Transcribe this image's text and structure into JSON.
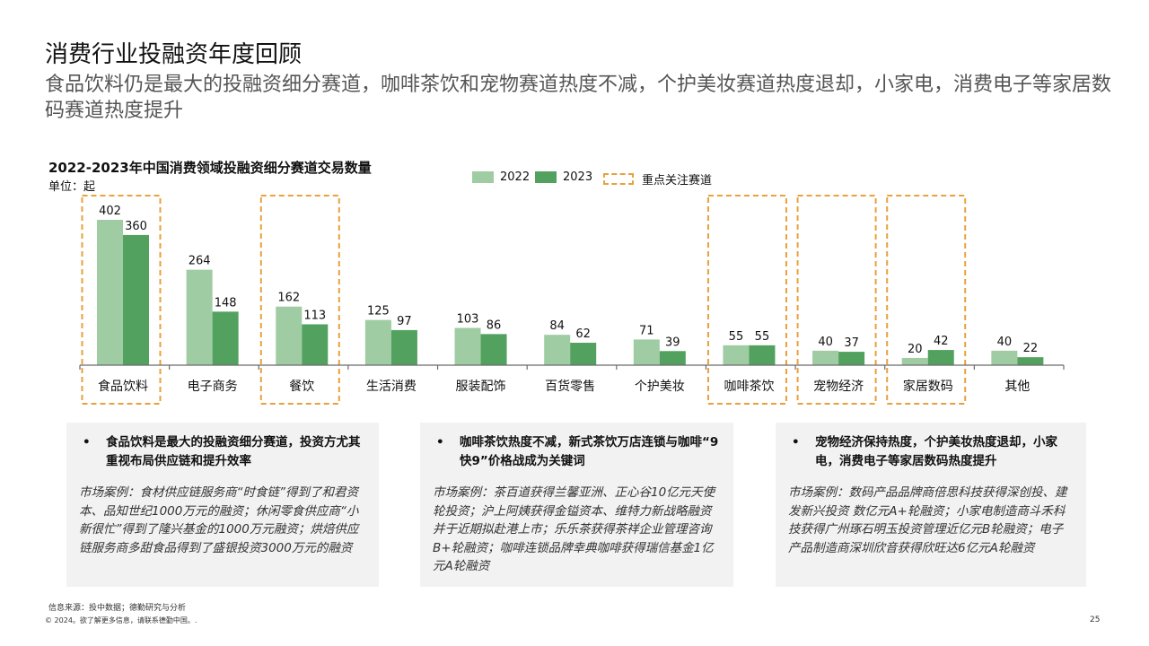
{
  "header": {
    "title": "消费行业投融资年度回顾",
    "subtitle": "食品饮料仍是最大的投融资细分赛道，咖啡茶饮和宠物赛道热度不减，个护美妆赛道热度退却，小家电，消费电子等家居数码赛道热度提升"
  },
  "chart_data": {
    "type": "bar",
    "title": "2022-2023年中国消费领域投融资细分赛道交易数量",
    "unit": "单位：起",
    "categories": [
      "食品饮料",
      "电子商务",
      "餐饮",
      "生活消费",
      "服装配饰",
      "百货零售",
      "个护美妆",
      "咖啡茶饮",
      "宠物经济",
      "家居数码",
      "其他"
    ],
    "series": [
      {
        "name": "2022",
        "values": [
          402,
          264,
          162,
          125,
          103,
          84,
          71,
          55,
          40,
          20,
          40
        ],
        "color": "#9fcca2"
      },
      {
        "name": "2023",
        "values": [
          360,
          148,
          113,
          97,
          86,
          62,
          39,
          55,
          37,
          42,
          22
        ],
        "color": "#52a15e"
      }
    ],
    "highlight_label": "重点关注赛道",
    "highlight_color": "#e8a13c",
    "highlighted_categories": [
      "食品饮料",
      "餐饮",
      "咖啡茶饮",
      "宠物经济",
      "家居数码"
    ],
    "ylim": [
      0,
      402
    ],
    "grid": false,
    "legend_position": "top"
  },
  "boxes": [
    {
      "bullet": "•",
      "heading": "食品饮料是最大的投融资细分赛道，投资方尤其重视布局供应链和提升效率",
      "case": "市场案例：食材供应链服务商“时食链”得到了和君资本、品知世纪1000万元的融资；休闲零食供应商“小新很忙”得到了隆兴基金的1000万元融资；烘焙供应链服务商多甜食品得到了盛银投资3000万元的融资"
    },
    {
      "bullet": "•",
      "heading": "咖啡茶饮热度不减，新式茶饮万店连锁与咖啡“9快9”价格战成为关键词",
      "case": "市场案例：茶百道获得兰馨亚洲、正心谷10亿元天使轮投资；沪上阿姨获得金镒资本、维特力新战略融资并于近期拟赴港上市；乐乐茶获得茶祥企业管理咨询B+轮融资；咖啡连锁品牌幸典咖啡获得瑞信基金1亿元A轮融资"
    },
    {
      "bullet": "•",
      "heading": "宠物经济保持热度，个护美妆热度退却，小家电，消费电子等家居数码热度提升",
      "case": "市场案例：数码产品品牌商倍思科技获得深创投、建发新兴投资 数亿元A+轮融资；小家电制造商斗禾科技获得广州琢石明玉投资管理近亿元B轮融资；电子产品制造商深圳欣音获得欣旺达6亿元A轮融资"
    }
  ],
  "footer": {
    "source": "信息来源：投中数据；德勤研究与分析",
    "copyright": "© 2024。欲了解更多信息，请联系德勤中国。.",
    "page_number": "25"
  }
}
